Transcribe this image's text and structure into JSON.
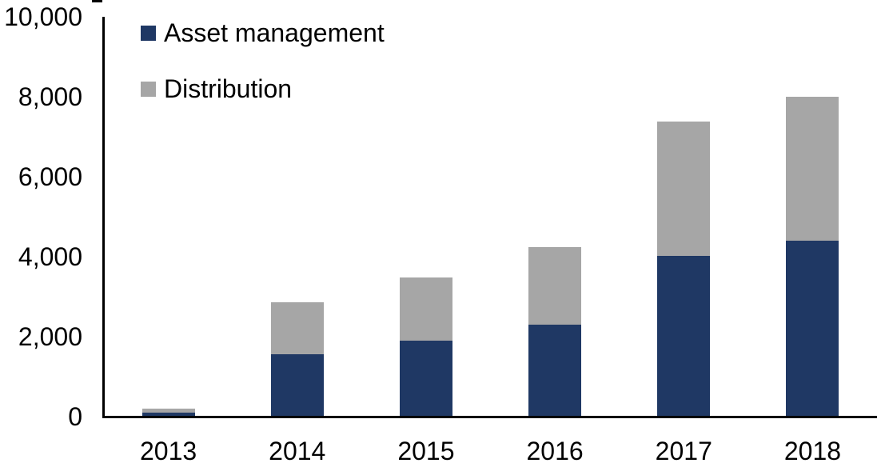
{
  "chart_data": {
    "type": "bar",
    "stacked": true,
    "title": "",
    "xlabel": "",
    "ylabel": "",
    "categories": [
      "2013",
      "2014",
      "2015",
      "2016",
      "2017",
      "2018"
    ],
    "series": [
      {
        "name": "Asset management",
        "color": "#1F3864",
        "values": [
          100,
          1570,
          1910,
          2310,
          4030,
          4410
        ]
      },
      {
        "name": "Distribution",
        "color": "#A6A6A6",
        "values": [
          100,
          1300,
          1580,
          1940,
          3360,
          3600
        ]
      }
    ],
    "totals": [
      200,
      2870,
      3490,
      4250,
      7390,
      8010
    ],
    "ylim": [
      0,
      10000
    ],
    "ytick_interval": 2000,
    "ytick_labels_top_to_bottom": [
      "10,000",
      "8,000",
      "6,000",
      "4,000",
      "2,000",
      "0"
    ],
    "legend_position": "top-left",
    "grid": false,
    "axis_color": "#000000",
    "background_color": "#FFFFFF"
  }
}
